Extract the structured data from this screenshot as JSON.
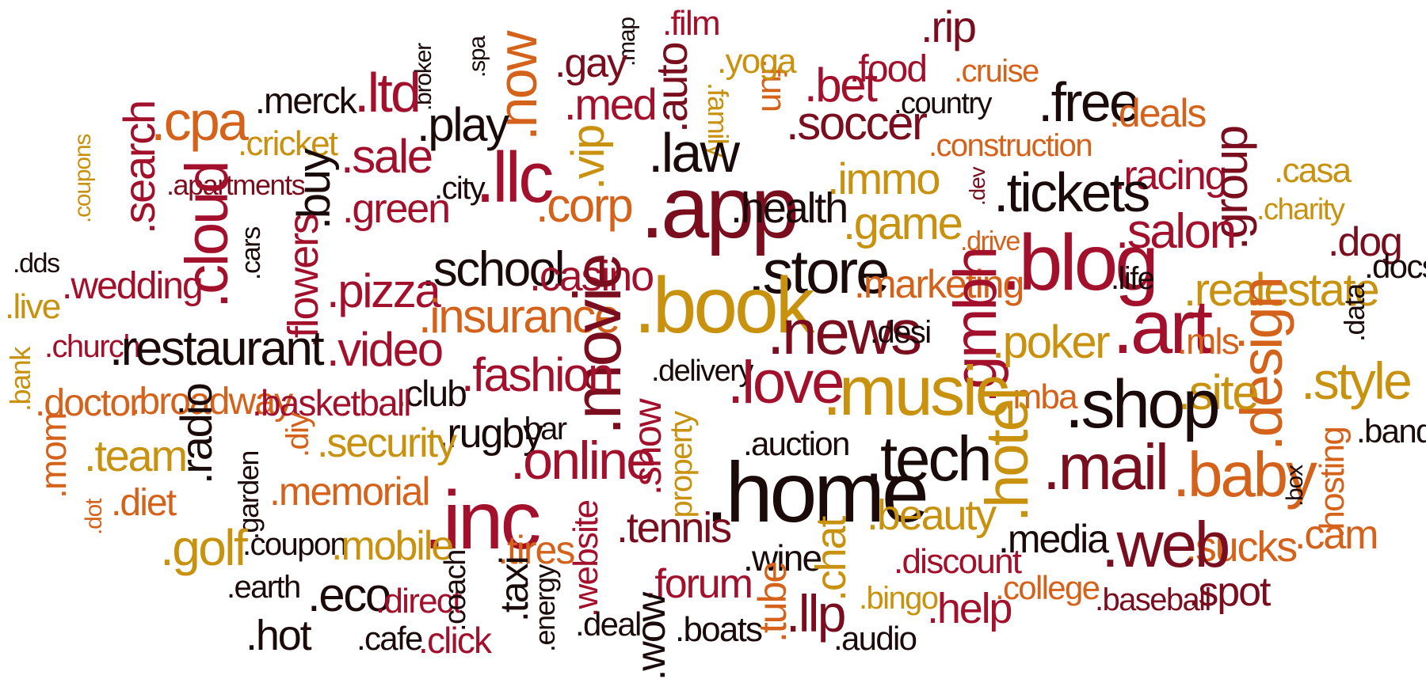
{
  "palette": {
    "dark_red": "#7a0e1e",
    "black": "#1a0a0a",
    "crimson": "#a3102c",
    "orange": "#d4621a",
    "gold": "#c8920f",
    "brown": "#8a3a14"
  },
  "words": [
    {
      "text": ".map",
      "color": "#1a0a0a"
    },
    {
      "text": ".film",
      "color": "#a3102c"
    },
    {
      "text": ".fun",
      "color": "#d4621a"
    },
    {
      "text": ".rip",
      "color": "#7a0e1e"
    },
    {
      "text": ".broker",
      "color": "#1a0a0a"
    },
    {
      "text": ".spa",
      "color": "#1a0a0a"
    },
    {
      "text": ".gay",
      "color": "#7a0e1e"
    },
    {
      "text": ".yoga",
      "color": "#c8920f"
    },
    {
      "text": ".food",
      "color": "#a3102c"
    },
    {
      "text": ".cruise",
      "color": "#d4621a"
    },
    {
      "text": ".bet",
      "color": "#a3102c"
    },
    {
      "text": ".merck",
      "color": "#1a0a0a"
    },
    {
      "text": ".ltd",
      "color": "#a3102c"
    },
    {
      "text": ".now",
      "color": "#d4621a"
    },
    {
      "text": ".auto",
      "color": "#7a0e1e"
    },
    {
      "text": ".med",
      "color": "#a3102c"
    },
    {
      "text": ".family",
      "color": "#c8920f"
    },
    {
      "text": ".country",
      "color": "#1a0a0a"
    },
    {
      "text": ".cpa",
      "color": "#d4621a"
    },
    {
      "text": ".play",
      "color": "#1a0a0a"
    },
    {
      "text": ".soccer",
      "color": "#7a0e1e"
    },
    {
      "text": ".free",
      "color": "#1a0a0a"
    },
    {
      "text": ".deals",
      "color": "#d4621a"
    },
    {
      "text": ".cricket",
      "color": "#c8920f"
    },
    {
      "text": ".law",
      "color": "#1a0a0a"
    },
    {
      "text": ".construction",
      "color": "#d4621a"
    },
    {
      "text": ".sale",
      "color": "#a3102c"
    },
    {
      "text": ".vip",
      "color": "#c8920f"
    },
    {
      "text": ".search",
      "color": "#a3102c"
    },
    {
      "text": ".llc",
      "color": "#a3102c"
    },
    {
      "text": ".immo",
      "color": "#c8920f"
    },
    {
      "text": ".racing",
      "color": "#a3102c"
    },
    {
      "text": ".casa",
      "color": "#c8920f"
    },
    {
      "text": ".apartments",
      "color": "#7a0e1e"
    },
    {
      "text": ".city",
      "color": "#1a0a0a"
    },
    {
      "text": ".tickets",
      "color": "#1a0a0a"
    },
    {
      "text": ".group",
      "color": "#7a0e1e"
    },
    {
      "text": ".coupons",
      "color": "#c8920f"
    },
    {
      "text": ".buy",
      "color": "#1a0a0a"
    },
    {
      "text": ".green",
      "color": "#a3102c"
    },
    {
      "text": ".corp",
      "color": "#d4621a"
    },
    {
      "text": ".app",
      "color": "#7a0e1e"
    },
    {
      "text": ".health",
      "color": "#1a0a0a"
    },
    {
      "text": ".dev",
      "color": "#7a0e1e"
    },
    {
      "text": ".charity",
      "color": "#c8920f"
    },
    {
      "text": ".game",
      "color": "#c8920f"
    },
    {
      "text": ".drive",
      "color": "#d4621a"
    },
    {
      "text": ".cloud",
      "color": "#a3102c"
    },
    {
      "text": ".salon",
      "color": "#a3102c"
    },
    {
      "text": ".dog",
      "color": "#7a0e1e"
    },
    {
      "text": ".dds",
      "color": "#1a0a0a"
    },
    {
      "text": ".cars",
      "color": "#1a0a0a"
    },
    {
      "text": ".blog",
      "color": "#a3102c"
    },
    {
      "text": ".docs",
      "color": "#1a0a0a"
    },
    {
      "text": ".school",
      "color": "#1a0a0a"
    },
    {
      "text": ".wedding",
      "color": "#a3102c"
    },
    {
      "text": ".flowers",
      "color": "#a3102c"
    },
    {
      "text": ".pizza",
      "color": "#a3102c"
    },
    {
      "text": ".casino",
      "color": "#a3102c"
    },
    {
      "text": ".store",
      "color": "#1a0a0a"
    },
    {
      "text": ".life",
      "color": "#1a0a0a"
    },
    {
      "text": ".realestate",
      "color": "#c8920f"
    },
    {
      "text": ".marketing",
      "color": "#d4621a"
    },
    {
      "text": ".live",
      "color": "#c8920f"
    },
    {
      "text": ".book",
      "color": "#c8920f"
    },
    {
      "text": ".data",
      "color": "#1a0a0a"
    },
    {
      "text": ".insurance",
      "color": "#d4621a"
    },
    {
      "text": ".news",
      "color": "#7a0e1e"
    },
    {
      "text": ".gmbh",
      "color": "#a3102c"
    },
    {
      "text": ".art",
      "color": "#a3102c"
    },
    {
      "text": ".church",
      "color": "#a3102c"
    },
    {
      "text": ".restaurant",
      "color": "#1a0a0a"
    },
    {
      "text": ".desi",
      "color": "#1a0a0a"
    },
    {
      "text": ".poker",
      "color": "#c8920f"
    },
    {
      "text": ".mls",
      "color": "#d4621a"
    },
    {
      "text": ".video",
      "color": "#a3102c"
    },
    {
      "text": ".movie",
      "color": "#7a0e1e"
    },
    {
      "text": ".design",
      "color": "#d4621a"
    },
    {
      "text": ".bank",
      "color": "#c8920f"
    },
    {
      "text": ".fashion",
      "color": "#a3102c"
    },
    {
      "text": ".delivery",
      "color": "#1a0a0a"
    },
    {
      "text": ".love",
      "color": "#a3102c"
    },
    {
      "text": ".style",
      "color": "#c8920f"
    },
    {
      "text": ".club",
      "color": "#1a0a0a"
    },
    {
      "text": ".music",
      "color": "#c8920f"
    },
    {
      "text": ".mba",
      "color": "#d4621a"
    },
    {
      "text": ".site",
      "color": "#c8920f"
    },
    {
      "text": ".shop",
      "color": "#1a0a0a"
    },
    {
      "text": ".doctor",
      "color": "#d4621a"
    },
    {
      "text": ".broadway",
      "color": "#d4621a"
    },
    {
      "text": ".basketball",
      "color": "#a3102c"
    },
    {
      "text": ".radio",
      "color": "#1a0a0a"
    },
    {
      "text": ".rugby",
      "color": "#1a0a0a"
    },
    {
      "text": ".bar",
      "color": "#1a0a0a"
    },
    {
      "text": ".diy",
      "color": "#d4621a"
    },
    {
      "text": ".security",
      "color": "#c8920f"
    },
    {
      "text": ".team",
      "color": "#c8920f"
    },
    {
      "text": ".band",
      "color": "#1a0a0a"
    },
    {
      "text": ".mom",
      "color": "#d4621a"
    },
    {
      "text": ".online",
      "color": "#a3102c"
    },
    {
      "text": ".show",
      "color": "#a3102c"
    },
    {
      "text": ".property",
      "color": "#c8920f"
    },
    {
      "text": ".auction",
      "color": "#1a0a0a"
    },
    {
      "text": ".tech",
      "color": "#1a0a0a"
    },
    {
      "text": ".hotel",
      "color": "#c8920f"
    },
    {
      "text": ".garden",
      "color": "#1a0a0a"
    },
    {
      "text": ".mail",
      "color": "#7a0e1e"
    },
    {
      "text": ".baby",
      "color": "#d4621a"
    },
    {
      "text": ".box",
      "color": "#1a0a0a"
    },
    {
      "text": ".hosting",
      "color": "#d4621a"
    },
    {
      "text": ".home",
      "color": "#1a0a0a"
    },
    {
      "text": ".memorial",
      "color": "#d4621a"
    },
    {
      "text": ".diet",
      "color": "#d4621a"
    },
    {
      "text": ".dot",
      "color": "#d4621a"
    },
    {
      "text": ".inc",
      "color": "#a3102c"
    },
    {
      "text": ".beauty",
      "color": "#c8920f"
    },
    {
      "text": ".golf",
      "color": "#c8920f"
    },
    {
      "text": ".coupon",
      "color": "#1a0a0a"
    },
    {
      "text": ".mobile",
      "color": "#c8920f"
    },
    {
      "text": ".tires",
      "color": "#d4621a"
    },
    {
      "text": ".website",
      "color": "#a3102c"
    },
    {
      "text": ".tennis",
      "color": "#7a0e1e"
    },
    {
      "text": ".media",
      "color": "#1a0a0a"
    },
    {
      "text": ".cam",
      "color": "#d4621a"
    },
    {
      "text": ".sucks",
      "color": "#d4621a"
    },
    {
      "text": ".discount",
      "color": "#a3102c"
    },
    {
      "text": ".wine",
      "color": "#1a0a0a"
    },
    {
      "text": ".chat",
      "color": "#c8920f"
    },
    {
      "text": ".web",
      "color": "#7a0e1e"
    },
    {
      "text": ".earth",
      "color": "#1a0a0a"
    },
    {
      "text": ".eco",
      "color": "#1a0a0a"
    },
    {
      "text": ".direct",
      "color": "#a3102c"
    },
    {
      "text": ".coach",
      "color": "#1a0a0a"
    },
    {
      "text": ".taxi",
      "color": "#1a0a0a"
    },
    {
      "text": ".forum",
      "color": "#a3102c"
    },
    {
      "text": ".tube",
      "color": "#d4621a"
    },
    {
      "text": ".bingo",
      "color": "#c8920f"
    },
    {
      "text": ".college",
      "color": "#d4621a"
    },
    {
      "text": ".spot",
      "color": "#7a0e1e"
    },
    {
      "text": ".baseball",
      "color": "#7a0e1e"
    },
    {
      "text": ".help",
      "color": "#a3102c"
    },
    {
      "text": ".energy",
      "color": "#1a0a0a"
    },
    {
      "text": ".deal",
      "color": "#1a0a0a"
    },
    {
      "text": ".wow",
      "color": "#1a0a0a"
    },
    {
      "text": ".llp",
      "color": "#7a0e1e"
    },
    {
      "text": ".hot",
      "color": "#1a0a0a"
    },
    {
      "text": ".cafe",
      "color": "#1a0a0a"
    },
    {
      "text": ".click",
      "color": "#a3102c"
    },
    {
      "text": ".boats",
      "color": "#1a0a0a"
    },
    {
      "text": ".audio",
      "color": "#1a0a0a"
    }
  ]
}
